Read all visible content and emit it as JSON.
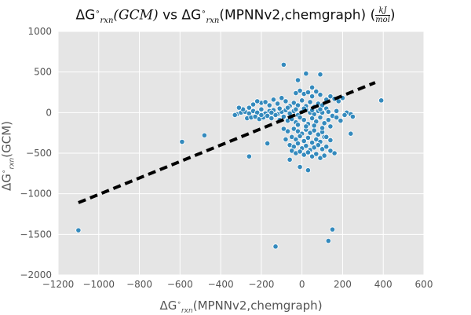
{
  "chart_data": {
    "type": "scatter",
    "title": "ΔG°rxn(GCM) vs ΔG°rxn(MPNNv2,chemgraph) (kJ/mol)",
    "title_parts": {
      "left_symbol": "ΔG",
      "left_sup": "∘",
      "left_sub": "rxn",
      "left_paren": "(GCM)",
      "middle": " vs ",
      "right_symbol": "ΔG",
      "right_sup": "∘",
      "right_sub": "rxn",
      "right_paren": "(MPNNv2,chemgraph) (",
      "unit_num": "kJ",
      "unit_den": "mol",
      "close": ")"
    },
    "xlabel": "ΔG°rxn(MPNNv2,chemgraph)",
    "xlabel_parts": {
      "symbol": "ΔG",
      "sup": "∘",
      "sub": "rxn",
      "rest": "(MPNNv2,chemgraph)"
    },
    "ylabel": "ΔG°rxn(GCM)",
    "ylabel_parts": {
      "symbol": "ΔG",
      "sup": "∘",
      "sub": "rxn",
      "rest": "(GCM)"
    },
    "xlim": [
      -1200,
      600
    ],
    "ylim": [
      -2000,
      1000
    ],
    "xticks": [
      -1200,
      -1000,
      -800,
      -600,
      -400,
      -200,
      0,
      200,
      400,
      600
    ],
    "yticks": [
      -2000,
      -1500,
      -1000,
      -500,
      0,
      500,
      1000
    ],
    "xtick_labels": [
      "−1200",
      "−1000",
      "−800",
      "−600",
      "−400",
      "−200",
      "0",
      "200",
      "400",
      "600"
    ],
    "ytick_labels": [
      "−2000",
      "−1500",
      "−1000",
      "−500",
      "0",
      "500",
      "1000"
    ],
    "grid": true,
    "background": "#e5e5e5",
    "point_color": "#348abd",
    "fit_line": {
      "x": [
        -1100,
        360
      ],
      "y": [
        -1110,
        370
      ],
      "color": "#000000",
      "style": "dashed"
    },
    "points": [
      [
        -1100,
        -1450
      ],
      [
        -590,
        -360
      ],
      [
        -480,
        -280
      ],
      [
        -260,
        -540
      ],
      [
        -170,
        -380
      ],
      [
        -130,
        -1650
      ],
      [
        150,
        -1440
      ],
      [
        130,
        -1580
      ],
      [
        390,
        150
      ],
      [
        -90,
        590
      ],
      [
        20,
        480
      ],
      [
        -20,
        400
      ],
      [
        90,
        470
      ],
      [
        50,
        310
      ],
      [
        200,
        180
      ],
      [
        220,
        0
      ],
      [
        240,
        -20
      ],
      [
        250,
        -50
      ],
      [
        240,
        -260
      ],
      [
        160,
        -500
      ],
      [
        -60,
        -580
      ],
      [
        -10,
        -670
      ],
      [
        30,
        -710
      ],
      [
        -320,
        -20
      ],
      [
        -300,
        0
      ],
      [
        -280,
        10
      ],
      [
        -260,
        -10
      ],
      [
        -240,
        20
      ],
      [
        -220,
        0
      ],
      [
        -200,
        40
      ],
      [
        -180,
        -10
      ],
      [
        -160,
        20
      ],
      [
        -140,
        30
      ],
      [
        -120,
        -20
      ],
      [
        -100,
        10
      ],
      [
        -80,
        30
      ],
      [
        -60,
        -10
      ],
      [
        -40,
        20
      ],
      [
        -20,
        -30
      ],
      [
        0,
        10
      ],
      [
        20,
        40
      ],
      [
        40,
        0
      ],
      [
        60,
        -20
      ],
      [
        80,
        20
      ],
      [
        100,
        0
      ],
      [
        120,
        50
      ],
      [
        -270,
        -70
      ],
      [
        -250,
        -60
      ],
      [
        -230,
        -50
      ],
      [
        -210,
        -80
      ],
      [
        -190,
        -60
      ],
      [
        -170,
        -40
      ],
      [
        -150,
        -70
      ],
      [
        -130,
        -30
      ],
      [
        -110,
        -90
      ],
      [
        -90,
        -50
      ],
      [
        -70,
        -100
      ],
      [
        -50,
        -80
      ],
      [
        -30,
        -120
      ],
      [
        -10,
        -60
      ],
      [
        10,
        -90
      ],
      [
        30,
        -140
      ],
      [
        50,
        -70
      ],
      [
        70,
        -110
      ],
      [
        90,
        -60
      ],
      [
        110,
        -130
      ],
      [
        130,
        -90
      ],
      [
        150,
        -40
      ],
      [
        170,
        -60
      ],
      [
        190,
        -100
      ],
      [
        -240,
        100
      ],
      [
        -200,
        120
      ],
      [
        -160,
        90
      ],
      [
        -120,
        110
      ],
      [
        -80,
        140
      ],
      [
        -40,
        120
      ],
      [
        0,
        150
      ],
      [
        40,
        130
      ],
      [
        80,
        110
      ],
      [
        120,
        160
      ],
      [
        -60,
        80
      ],
      [
        -20,
        90
      ],
      [
        20,
        80
      ],
      [
        60,
        70
      ],
      [
        100,
        90
      ],
      [
        -40,
        -200
      ],
      [
        -20,
        -230
      ],
      [
        0,
        -260
      ],
      [
        20,
        -210
      ],
      [
        40,
        -250
      ],
      [
        60,
        -220
      ],
      [
        80,
        -270
      ],
      [
        100,
        -240
      ],
      [
        -50,
        -300
      ],
      [
        -30,
        -330
      ],
      [
        -10,
        -290
      ],
      [
        10,
        -350
      ],
      [
        30,
        -310
      ],
      [
        50,
        -370
      ],
      [
        70,
        -330
      ],
      [
        90,
        -360
      ],
      [
        110,
        -300
      ],
      [
        -60,
        -400
      ],
      [
        -40,
        -420
      ],
      [
        -20,
        -380
      ],
      [
        0,
        -440
      ],
      [
        20,
        -410
      ],
      [
        40,
        -460
      ],
      [
        60,
        -430
      ],
      [
        80,
        -400
      ],
      [
        100,
        -450
      ],
      [
        120,
        -420
      ],
      [
        140,
        -470
      ],
      [
        -50,
        -470
      ],
      [
        -30,
        -500
      ],
      [
        -10,
        -480
      ],
      [
        10,
        -520
      ],
      [
        30,
        -490
      ],
      [
        50,
        -540
      ],
      [
        70,
        -510
      ],
      [
        90,
        -560
      ],
      [
        110,
        -530
      ],
      [
        10,
        230
      ],
      [
        30,
        250
      ],
      [
        50,
        200
      ],
      [
        70,
        260
      ],
      [
        90,
        220
      ],
      [
        -10,
        270
      ],
      [
        -30,
        240
      ],
      [
        140,
        200
      ],
      [
        160,
        170
      ],
      [
        180,
        140
      ],
      [
        -100,
        180
      ],
      [
        -140,
        160
      ],
      [
        -180,
        130
      ],
      [
        -220,
        140
      ],
      [
        -260,
        60
      ],
      [
        -290,
        40
      ],
      [
        -310,
        60
      ],
      [
        -330,
        -30
      ],
      [
        -200,
        -30
      ],
      [
        -150,
        0
      ],
      [
        -110,
        50
      ],
      [
        -70,
        60
      ],
      [
        -30,
        40
      ],
      [
        10,
        50
      ],
      [
        50,
        30
      ],
      [
        90,
        40
      ],
      [
        130,
        10
      ],
      [
        170,
        20
      ],
      [
        210,
        -30
      ],
      [
        -20,
        -150
      ],
      [
        20,
        -170
      ],
      [
        60,
        -160
      ],
      [
        100,
        -190
      ],
      [
        140,
        -170
      ],
      [
        -70,
        -230
      ],
      [
        -90,
        -200
      ],
      [
        120,
        -300
      ],
      [
        140,
        -340
      ],
      [
        -80,
        -330
      ]
    ]
  }
}
